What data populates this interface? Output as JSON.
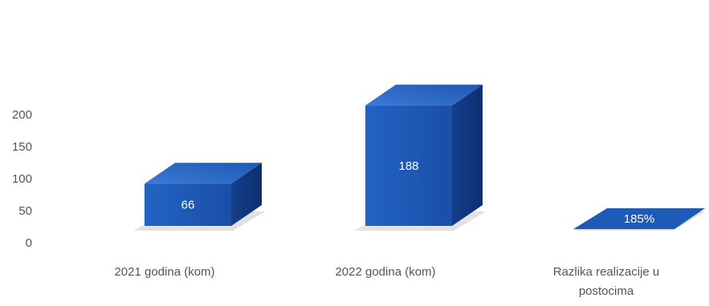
{
  "chart_data": {
    "type": "bar",
    "style": "3d-column",
    "categories": [
      "2021  godina (kom)",
      "2022  godina (kom)",
      "Razlika realizacije u postocima"
    ],
    "category_lines": [
      [
        "2021  godina (kom)"
      ],
      [
        "2022  godina (kom)"
      ],
      [
        "Razlika realizacije u",
        "postocima"
      ]
    ],
    "values": [
      66,
      188,
      1.85
    ],
    "data_labels": [
      "66",
      "188",
      "185%"
    ],
    "ylim": [
      0,
      210
    ],
    "yticks": [
      "0",
      "50",
      "100",
      "150",
      "200"
    ],
    "ytick_values": [
      0,
      50,
      100,
      150,
      200
    ],
    "grid": false,
    "legend": "none",
    "colors": {
      "front": "#1e5bb8",
      "front_dark": "#17479a",
      "top": "#2c6fd0",
      "side": "#0f3a82",
      "shadow": "#d6d6d6",
      "label_text": "#ffffff",
      "axis_text": "#555555"
    }
  }
}
